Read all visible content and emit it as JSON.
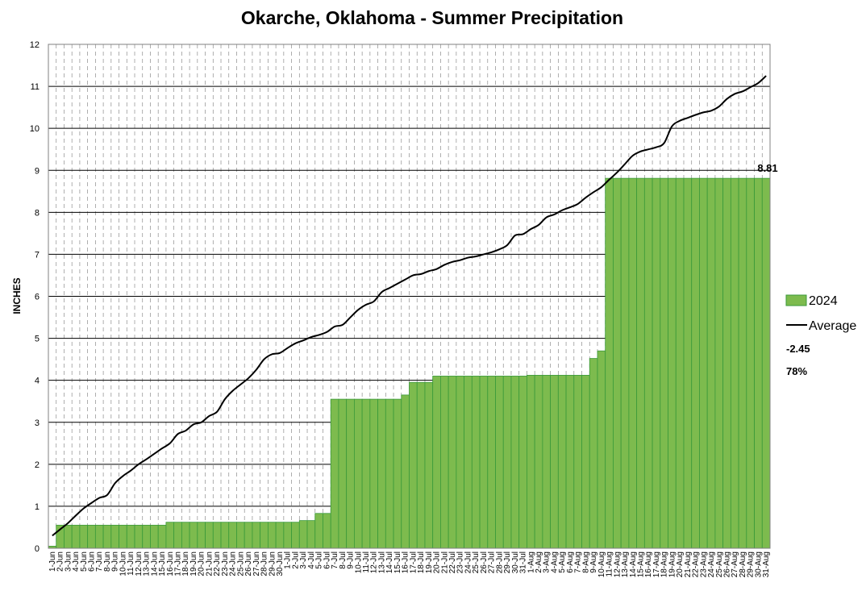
{
  "chart_data": {
    "type": "bar",
    "title": "Okarche, Oklahoma - Summer Precipitation",
    "xlabel": "",
    "ylabel": "INCHES",
    "ylim": [
      0,
      12
    ],
    "yticks": [
      0,
      1,
      2,
      3,
      4,
      5,
      6,
      7,
      8,
      9,
      10,
      11,
      12
    ],
    "grid": true,
    "legend_position": "right",
    "categories": [
      "1-Jun",
      "2-Jun",
      "3-Jun",
      "4-Jun",
      "5-Jun",
      "6-Jun",
      "7-Jun",
      "8-Jun",
      "9-Jun",
      "10-Jun",
      "11-Jun",
      "12-Jun",
      "13-Jun",
      "14-Jun",
      "15-Jun",
      "16-Jun",
      "17-Jun",
      "18-Jun",
      "19-Jun",
      "20-Jun",
      "21-Jun",
      "22-Jun",
      "23-Jun",
      "24-Jun",
      "25-Jun",
      "26-Jun",
      "27-Jun",
      "28-Jun",
      "29-Jun",
      "30-Jun",
      "1-Jul",
      "2-Jul",
      "3-Jul",
      "4-Jul",
      "5-Jul",
      "6-Jul",
      "7-Jul",
      "8-Jul",
      "9-Jul",
      "10-Jul",
      "11-Jul",
      "12-Jul",
      "13-Jul",
      "14-Jul",
      "15-Jul",
      "16-Jul",
      "17-Jul",
      "18-Jul",
      "19-Jul",
      "20-Jul",
      "21-Jul",
      "22-Jul",
      "23-Jul",
      "24-Jul",
      "25-Jul",
      "26-Jul",
      "27-Jul",
      "28-Jul",
      "29-Jul",
      "30-Jul",
      "31-Jul",
      "1-Aug",
      "2-Aug",
      "3-Aug",
      "4-Aug",
      "5-Aug",
      "6-Aug",
      "7-Aug",
      "8-Aug",
      "9-Aug",
      "10-Aug",
      "11-Aug",
      "12-Aug",
      "13-Aug",
      "14-Aug",
      "15-Aug",
      "16-Aug",
      "17-Aug",
      "18-Aug",
      "19-Aug",
      "20-Aug",
      "21-Aug",
      "22-Aug",
      "23-Aug",
      "24-Aug",
      "25-Aug",
      "26-Aug",
      "27-Aug",
      "28-Aug",
      "29-Aug",
      "30-Aug",
      "31-Aug"
    ],
    "series": [
      {
        "name": "2024",
        "type": "bar",
        "color": "#7dbb4e",
        "edge_color": "#3a9a3a",
        "values": [
          0.05,
          0.55,
          0.55,
          0.55,
          0.55,
          0.55,
          0.55,
          0.55,
          0.55,
          0.55,
          0.55,
          0.55,
          0.55,
          0.55,
          0.55,
          0.62,
          0.62,
          0.62,
          0.62,
          0.62,
          0.62,
          0.62,
          0.62,
          0.62,
          0.62,
          0.62,
          0.62,
          0.62,
          0.62,
          0.62,
          0.62,
          0.62,
          0.66,
          0.66,
          0.83,
          0.83,
          3.55,
          3.55,
          3.55,
          3.55,
          3.55,
          3.55,
          3.55,
          3.55,
          3.55,
          3.65,
          3.95,
          3.95,
          3.95,
          4.1,
          4.1,
          4.1,
          4.1,
          4.1,
          4.1,
          4.1,
          4.1,
          4.1,
          4.1,
          4.1,
          4.1,
          4.12,
          4.12,
          4.12,
          4.12,
          4.12,
          4.12,
          4.12,
          4.12,
          4.52,
          4.7,
          8.81,
          8.81,
          8.81,
          8.81,
          8.81,
          8.81,
          8.81,
          8.81,
          8.81,
          8.81,
          8.81,
          8.81,
          8.81,
          8.81,
          8.81,
          8.81,
          8.81,
          8.81,
          8.81,
          8.81,
          8.81
        ]
      },
      {
        "name": "Average",
        "type": "line",
        "color": "#000000",
        "values": [
          0.3,
          0.45,
          0.6,
          0.78,
          0.95,
          1.08,
          1.2,
          1.27,
          1.55,
          1.72,
          1.85,
          2.0,
          2.12,
          2.25,
          2.38,
          2.5,
          2.72,
          2.8,
          2.95,
          3.0,
          3.15,
          3.25,
          3.55,
          3.75,
          3.9,
          4.05,
          4.25,
          4.5,
          4.62,
          4.65,
          4.77,
          4.88,
          4.95,
          5.03,
          5.08,
          5.15,
          5.28,
          5.32,
          5.5,
          5.68,
          5.8,
          5.88,
          6.1,
          6.2,
          6.3,
          6.4,
          6.5,
          6.53,
          6.6,
          6.65,
          6.75,
          6.82,
          6.86,
          6.92,
          6.95,
          7.0,
          7.05,
          7.12,
          7.22,
          7.45,
          7.48,
          7.6,
          7.7,
          7.88,
          7.95,
          8.05,
          8.12,
          8.2,
          8.35,
          8.48,
          8.6,
          8.78,
          8.95,
          9.15,
          9.35,
          9.45,
          9.5,
          9.55,
          9.65,
          10.05,
          10.18,
          10.25,
          10.32,
          10.38,
          10.42,
          10.52,
          10.7,
          10.82,
          10.88,
          10.98,
          11.08,
          11.25
        ]
      }
    ],
    "annotations": {
      "last_value": "8.81",
      "departure": "-2.45",
      "percent_of_average": "78%"
    }
  }
}
